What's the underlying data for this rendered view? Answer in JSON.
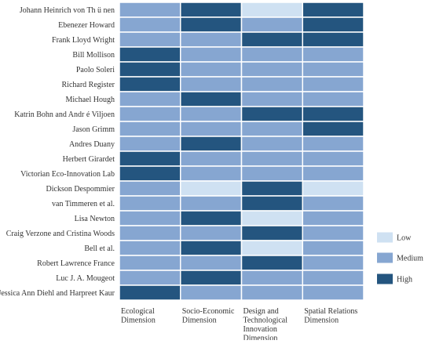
{
  "chart_data": {
    "type": "heatmap",
    "title": "",
    "xlabel": "",
    "ylabel": "",
    "rows": [
      "Johann Heinrich von Th ü nen",
      "Ebenezer Howard",
      "Frank Lloyd Wright",
      "Bill Mollison",
      "Paolo Soleri",
      "Richard Register",
      "Michael Hough",
      "Katrin Bohn and Andr é  Viljoen",
      "Jason Grimm",
      "Andres Duany",
      "Herbert Girardet",
      "Victorian Eco-Innovation Lab",
      "Dickson Despommier",
      "van Timmeren et al.",
      "Lisa Newton",
      "Craig Verzone and Cristina Woods",
      "Bell et al.",
      "Robert Lawrence France",
      "Luc J. A. Mougeot",
      "Jessica Ann Diehl and Harpreet Kaur"
    ],
    "columns": [
      [
        "Ecological",
        "Dimension"
      ],
      [
        "Socio-Economic",
        "Dimension"
      ],
      [
        "Design and",
        "Technological",
        "Innovation",
        "Dimension"
      ],
      [
        "Spatial Relations",
        "Dimension"
      ]
    ],
    "values": [
      [
        2,
        3,
        1,
        3
      ],
      [
        2,
        3,
        2,
        3
      ],
      [
        2,
        2,
        3,
        3
      ],
      [
        3,
        2,
        2,
        2
      ],
      [
        3,
        2,
        2,
        2
      ],
      [
        3,
        2,
        2,
        2
      ],
      [
        2,
        3,
        2,
        2
      ],
      [
        2,
        2,
        3,
        3
      ],
      [
        2,
        2,
        2,
        3
      ],
      [
        2,
        3,
        2,
        2
      ],
      [
        3,
        2,
        2,
        2
      ],
      [
        3,
        2,
        2,
        2
      ],
      [
        2,
        1,
        3,
        1
      ],
      [
        2,
        2,
        3,
        2
      ],
      [
        2,
        3,
        1,
        2
      ],
      [
        2,
        2,
        3,
        2
      ],
      [
        2,
        3,
        1,
        2
      ],
      [
        2,
        2,
        3,
        2
      ],
      [
        2,
        3,
        2,
        2
      ],
      [
        3,
        2,
        2,
        2
      ]
    ],
    "levels": [
      {
        "value": 1,
        "label": "Low",
        "color": "#cfe1f2"
      },
      {
        "value": 2,
        "label": "Medium",
        "color": "#86a6d1"
      },
      {
        "value": 3,
        "label": "High",
        "color": "#24557f"
      }
    ],
    "legend_position": "right"
  }
}
